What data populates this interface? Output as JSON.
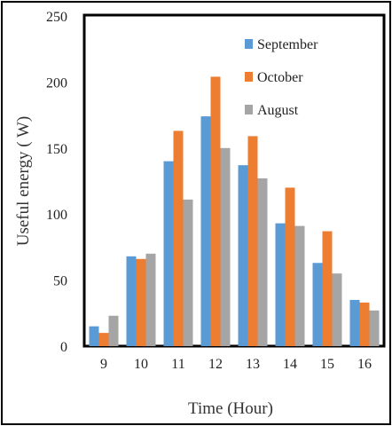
{
  "chart_data": {
    "type": "bar",
    "categories": [
      "9",
      "10",
      "11",
      "12",
      "13",
      "14",
      "15",
      "16"
    ],
    "series": [
      {
        "name": "September",
        "color": "#5b9bd5",
        "values": [
          15,
          68,
          140,
          174,
          137,
          93,
          63,
          35
        ]
      },
      {
        "name": "October",
        "color": "#ed7d31",
        "values": [
          10,
          66,
          163,
          204,
          159,
          120,
          87,
          33
        ]
      },
      {
        "name": "August",
        "color": "#a5a5a5",
        "values": [
          23,
          70,
          111,
          150,
          127,
          91,
          55,
          27
        ]
      }
    ],
    "xlabel": "Time (Hour)",
    "ylabel": "Useful  energy ( W)",
    "ylim": [
      0,
      250
    ],
    "yticks": [
      0,
      50,
      100,
      150,
      200,
      250
    ],
    "grid": false,
    "legend_position": "top-right"
  }
}
